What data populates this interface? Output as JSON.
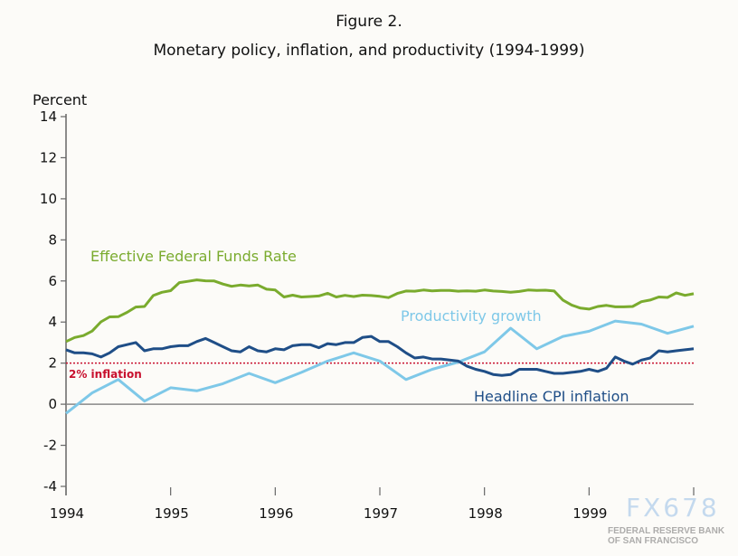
{
  "title": "Figure 2.",
  "subtitle": "Monetary policy, inflation, and productivity (1994-1999)",
  "watermark": {
    "text": "FX678",
    "logo_text": "FEDERAL RESERVE BANK OF SAN FRANCISCO"
  },
  "chart_data": {
    "type": "line",
    "title": "Figure 2.",
    "subtitle": "Monetary policy, inflation, and productivity (1994-1999)",
    "ylabel": "Percent",
    "xlabel": "",
    "ylim": [
      -4,
      14
    ],
    "yticks": [
      14,
      12,
      10,
      8,
      6,
      4,
      2,
      0,
      -2,
      -4
    ],
    "xlim": [
      "1994-01",
      "2000-01"
    ],
    "xticks": [
      "1994",
      "1995",
      "1996",
      "1997",
      "1998",
      "1999"
    ],
    "grid": false,
    "colors": {
      "fed_funds": "#7aab2e",
      "productivity": "#7ec8e8",
      "cpi": "#1f4e87",
      "target": "#c8102e"
    },
    "reference_line": {
      "label": "2% inflation",
      "value": 2
    },
    "series": [
      {
        "name": "Effective Federal Funds Rate",
        "key": "fed_funds",
        "x": [
          "1994-01",
          "1994-02",
          "1994-03",
          "1994-04",
          "1994-05",
          "1994-06",
          "1994-07",
          "1994-08",
          "1994-09",
          "1994-10",
          "1994-11",
          "1994-12",
          "1995-01",
          "1995-02",
          "1995-03",
          "1995-04",
          "1995-05",
          "1995-06",
          "1995-07",
          "1995-08",
          "1995-09",
          "1995-10",
          "1995-11",
          "1995-12",
          "1996-01",
          "1996-02",
          "1996-03",
          "1996-04",
          "1996-05",
          "1996-06",
          "1996-07",
          "1996-08",
          "1996-09",
          "1996-10",
          "1996-11",
          "1996-12",
          "1997-01",
          "1997-02",
          "1997-03",
          "1997-04",
          "1997-05",
          "1997-06",
          "1997-07",
          "1997-08",
          "1997-09",
          "1997-10",
          "1997-11",
          "1997-12",
          "1998-01",
          "1998-02",
          "1998-03",
          "1998-04",
          "1998-05",
          "1998-06",
          "1998-07",
          "1998-08",
          "1998-09",
          "1998-10",
          "1998-11",
          "1998-12",
          "1999-01",
          "1999-02",
          "1999-03",
          "1999-04",
          "1999-05",
          "1999-06",
          "1999-07",
          "1999-08",
          "1999-09",
          "1999-10",
          "1999-11",
          "1999-12",
          "2000-01"
        ],
        "values": [
          3.05,
          3.25,
          3.34,
          3.56,
          4.01,
          4.25,
          4.26,
          4.47,
          4.73,
          4.76,
          5.29,
          5.45,
          5.53,
          5.92,
          5.98,
          6.05,
          6.01,
          6.0,
          5.85,
          5.74,
          5.8,
          5.76,
          5.8,
          5.6,
          5.56,
          5.22,
          5.31,
          5.22,
          5.24,
          5.27,
          5.4,
          5.22,
          5.3,
          5.24,
          5.31,
          5.29,
          5.25,
          5.19,
          5.39,
          5.51,
          5.5,
          5.56,
          5.52,
          5.54,
          5.54,
          5.5,
          5.52,
          5.5,
          5.56,
          5.51,
          5.49,
          5.45,
          5.49,
          5.56,
          5.54,
          5.55,
          5.51,
          5.07,
          4.83,
          4.68,
          4.63,
          4.76,
          4.81,
          4.74,
          4.74,
          4.76,
          4.99,
          5.07,
          5.22,
          5.2,
          5.42,
          5.3,
          5.38
        ]
      },
      {
        "name": "Productivity growth",
        "key": "productivity",
        "x": [
          "1994-01",
          "1994-04",
          "1994-07",
          "1994-10",
          "1995-01",
          "1995-04",
          "1995-07",
          "1995-10",
          "1996-01",
          "1996-04",
          "1996-07",
          "1996-10",
          "1997-01",
          "1997-04",
          "1997-07",
          "1997-10",
          "1998-01",
          "1998-04",
          "1998-07",
          "1998-10",
          "1999-01",
          "1999-04",
          "1999-07",
          "1999-10",
          "2000-01"
        ],
        "values": [
          -0.45,
          0.55,
          1.2,
          0.15,
          0.8,
          0.65,
          1.0,
          1.5,
          1.05,
          1.55,
          2.1,
          2.5,
          2.1,
          1.2,
          1.7,
          2.05,
          2.55,
          3.7,
          2.7,
          3.3,
          3.55,
          4.05,
          3.9,
          3.45,
          3.8
        ]
      },
      {
        "name": "Headline CPI inflation",
        "key": "cpi",
        "x": [
          "1994-01",
          "1994-02",
          "1994-03",
          "1994-04",
          "1994-05",
          "1994-06",
          "1994-07",
          "1994-08",
          "1994-09",
          "1994-10",
          "1994-11",
          "1994-12",
          "1995-01",
          "1995-02",
          "1995-03",
          "1995-04",
          "1995-05",
          "1995-06",
          "1995-07",
          "1995-08",
          "1995-09",
          "1995-10",
          "1995-11",
          "1995-12",
          "1996-01",
          "1996-02",
          "1996-03",
          "1996-04",
          "1996-05",
          "1996-06",
          "1996-07",
          "1996-08",
          "1996-09",
          "1996-10",
          "1996-11",
          "1996-12",
          "1997-01",
          "1997-02",
          "1997-03",
          "1997-04",
          "1997-05",
          "1997-06",
          "1997-07",
          "1997-08",
          "1997-09",
          "1997-10",
          "1997-11",
          "1997-12",
          "1998-01",
          "1998-02",
          "1998-03",
          "1998-04",
          "1998-05",
          "1998-06",
          "1998-07",
          "1998-08",
          "1998-09",
          "1998-10",
          "1998-11",
          "1998-12",
          "1999-01",
          "1999-02",
          "1999-03",
          "1999-04",
          "1999-05",
          "1999-06",
          "1999-07",
          "1999-08",
          "1999-09",
          "1999-10",
          "1999-11",
          "1999-12",
          "2000-01"
        ],
        "values": [
          2.65,
          2.5,
          2.5,
          2.45,
          2.3,
          2.5,
          2.8,
          2.9,
          3.0,
          2.6,
          2.7,
          2.7,
          2.8,
          2.85,
          2.85,
          3.05,
          3.2,
          3.0,
          2.8,
          2.6,
          2.55,
          2.8,
          2.6,
          2.55,
          2.7,
          2.65,
          2.85,
          2.9,
          2.9,
          2.75,
          2.95,
          2.9,
          3.0,
          3.0,
          3.25,
          3.3,
          3.05,
          3.05,
          2.8,
          2.5,
          2.25,
          2.3,
          2.2,
          2.2,
          2.15,
          2.1,
          1.85,
          1.7,
          1.6,
          1.45,
          1.4,
          1.45,
          1.7,
          1.7,
          1.7,
          1.6,
          1.5,
          1.5,
          1.55,
          1.6,
          1.7,
          1.6,
          1.75,
          2.3,
          2.1,
          1.95,
          2.15,
          2.25,
          2.6,
          2.55,
          2.6,
          2.65,
          2.7
        ]
      }
    ]
  }
}
